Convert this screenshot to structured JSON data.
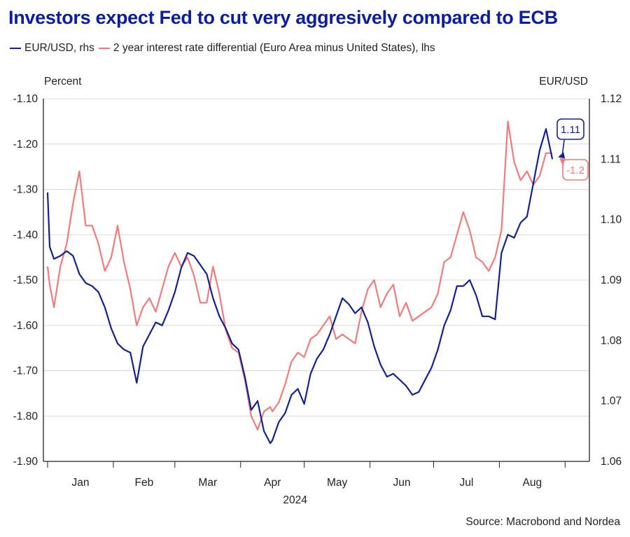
{
  "title": "Investors expect Fed to cut very aggresively compared to ECB",
  "source": "Source: Macrobond and Nordea",
  "colors": {
    "title": "#0b1f9c",
    "eurusd": "#13228f",
    "spread": "#ee7c7c",
    "grid": "#d9d9d9"
  },
  "chart_data": {
    "type": "line",
    "title": "Investors expect Fed to cut very aggresively compared to ECB",
    "y_left_label": "Percent",
    "y_right_label": "EUR/USD",
    "x_period_label": "2024",
    "x_ticks": [
      "Jan",
      "Feb",
      "Mar",
      "Apr",
      "May",
      "Jun",
      "Jul",
      "Aug"
    ],
    "y_left": {
      "min": -1.9,
      "max": -1.1,
      "ticks": [
        "-1.10",
        "-1.20",
        "-1.30",
        "-1.40",
        "-1.50",
        "-1.60",
        "-1.70",
        "-1.80",
        "-1.90"
      ]
    },
    "y_right": {
      "min": 1.06,
      "max": 1.12,
      "ticks": [
        "1.12",
        "1.11",
        "1.10",
        "1.09",
        "1.08",
        "1.07",
        "1.06"
      ]
    },
    "grid": true,
    "legend_position": "top-left",
    "series": [
      {
        "name": "EUR/USD, rhs",
        "axis": "right",
        "x": [
          "2024-01-01",
          "2024-01-02",
          "2024-01-04",
          "2024-01-07",
          "2024-01-10",
          "2024-01-13",
          "2024-01-16",
          "2024-01-19",
          "2024-01-22",
          "2024-01-25",
          "2024-01-28",
          "2024-01-31",
          "2024-02-03",
          "2024-02-06",
          "2024-02-09",
          "2024-02-12",
          "2024-02-15",
          "2024-02-18",
          "2024-02-21",
          "2024-02-24",
          "2024-02-27",
          "2024-03-01",
          "2024-03-04",
          "2024-03-07",
          "2024-03-10",
          "2024-03-13",
          "2024-03-16",
          "2024-03-19",
          "2024-03-22",
          "2024-03-25",
          "2024-03-28",
          "2024-03-31",
          "2024-04-03",
          "2024-04-06",
          "2024-04-09",
          "2024-04-12",
          "2024-04-15",
          "2024-04-16",
          "2024-04-19",
          "2024-04-22",
          "2024-04-25",
          "2024-04-28",
          "2024-05-01",
          "2024-05-04",
          "2024-05-07",
          "2024-05-10",
          "2024-05-13",
          "2024-05-16",
          "2024-05-19",
          "2024-05-22",
          "2024-05-25",
          "2024-05-28",
          "2024-05-31",
          "2024-06-03",
          "2024-06-06",
          "2024-06-09",
          "2024-06-12",
          "2024-06-15",
          "2024-06-18",
          "2024-06-21",
          "2024-06-24",
          "2024-06-27",
          "2024-06-30",
          "2024-07-03",
          "2024-07-06",
          "2024-07-09",
          "2024-07-12",
          "2024-07-15",
          "2024-07-18",
          "2024-07-21",
          "2024-07-24",
          "2024-07-27",
          "2024-07-30",
          "2024-08-02",
          "2024-08-05",
          "2024-08-08",
          "2024-08-11",
          "2024-08-14",
          "2024-08-17",
          "2024-08-20",
          "2024-08-23",
          "2024-08-26"
        ],
        "values": [
          1.1045,
          1.0955,
          1.0935,
          1.094,
          1.0948,
          1.094,
          1.091,
          1.0895,
          1.089,
          1.088,
          1.0855,
          1.082,
          1.0795,
          1.0785,
          1.078,
          1.073,
          1.079,
          1.081,
          1.083,
          1.0825,
          1.085,
          1.088,
          1.092,
          1.0945,
          1.094,
          1.0925,
          1.091,
          1.087,
          1.084,
          1.082,
          1.0795,
          1.0785,
          1.074,
          1.0685,
          1.07,
          1.065,
          1.063,
          1.0635,
          1.0665,
          1.068,
          1.071,
          1.072,
          1.0695,
          1.0745,
          1.077,
          1.0785,
          1.081,
          1.084,
          1.087,
          1.086,
          1.0845,
          1.0855,
          1.083,
          1.079,
          1.076,
          1.074,
          1.0745,
          1.0735,
          1.0725,
          1.071,
          1.0715,
          1.0735,
          1.0755,
          1.0785,
          1.0825,
          1.085,
          1.089,
          1.089,
          1.09,
          1.0875,
          1.084,
          1.084,
          1.0835,
          1.0945,
          1.0975,
          1.097,
          1.0995,
          1.1005,
          1.106,
          1.1115,
          1.115,
          1.11
        ]
      },
      {
        "name": "2 year interest rate differential (Euro Area minus United States), lhs",
        "axis": "left",
        "x": [
          "2024-01-01",
          "2024-01-02",
          "2024-01-04",
          "2024-01-07",
          "2024-01-10",
          "2024-01-13",
          "2024-01-16",
          "2024-01-19",
          "2024-01-22",
          "2024-01-25",
          "2024-01-28",
          "2024-01-31",
          "2024-02-03",
          "2024-02-06",
          "2024-02-09",
          "2024-02-12",
          "2024-02-15",
          "2024-02-18",
          "2024-02-21",
          "2024-02-24",
          "2024-02-27",
          "2024-03-01",
          "2024-03-04",
          "2024-03-07",
          "2024-03-10",
          "2024-03-13",
          "2024-03-16",
          "2024-03-19",
          "2024-03-22",
          "2024-03-25",
          "2024-03-28",
          "2024-03-31",
          "2024-04-03",
          "2024-04-06",
          "2024-04-09",
          "2024-04-12",
          "2024-04-15",
          "2024-04-16",
          "2024-04-19",
          "2024-04-22",
          "2024-04-25",
          "2024-04-28",
          "2024-05-01",
          "2024-05-04",
          "2024-05-07",
          "2024-05-10",
          "2024-05-13",
          "2024-05-16",
          "2024-05-19",
          "2024-05-22",
          "2024-05-25",
          "2024-05-28",
          "2024-05-31",
          "2024-06-03",
          "2024-06-06",
          "2024-06-09",
          "2024-06-12",
          "2024-06-15",
          "2024-06-18",
          "2024-06-21",
          "2024-06-24",
          "2024-06-27",
          "2024-06-30",
          "2024-07-03",
          "2024-07-06",
          "2024-07-09",
          "2024-07-12",
          "2024-07-15",
          "2024-07-18",
          "2024-07-21",
          "2024-07-24",
          "2024-07-27",
          "2024-07-30",
          "2024-08-02",
          "2024-08-05",
          "2024-08-08",
          "2024-08-11",
          "2024-08-14",
          "2024-08-17",
          "2024-08-20",
          "2024-08-23",
          "2024-08-26"
        ],
        "values": [
          -1.47,
          -1.51,
          -1.56,
          -1.47,
          -1.42,
          -1.33,
          -1.26,
          -1.38,
          -1.38,
          -1.42,
          -1.48,
          -1.45,
          -1.38,
          -1.46,
          -1.52,
          -1.6,
          -1.56,
          -1.54,
          -1.57,
          -1.52,
          -1.47,
          -1.44,
          -1.47,
          -1.45,
          -1.49,
          -1.55,
          -1.55,
          -1.47,
          -1.53,
          -1.61,
          -1.65,
          -1.66,
          -1.72,
          -1.8,
          -1.83,
          -1.79,
          -1.78,
          -1.79,
          -1.77,
          -1.73,
          -1.68,
          -1.66,
          -1.67,
          -1.63,
          -1.62,
          -1.6,
          -1.58,
          -1.63,
          -1.62,
          -1.63,
          -1.64,
          -1.57,
          -1.52,
          -1.5,
          -1.56,
          -1.53,
          -1.51,
          -1.58,
          -1.55,
          -1.59,
          -1.58,
          -1.57,
          -1.56,
          -1.53,
          -1.46,
          -1.45,
          -1.4,
          -1.35,
          -1.39,
          -1.45,
          -1.46,
          -1.48,
          -1.45,
          -1.39,
          -1.15,
          -1.24,
          -1.28,
          -1.26,
          -1.29,
          -1.27,
          -1.22,
          -1.22
        ]
      }
    ],
    "annotations": [
      {
        "series": "EUR/USD, rhs",
        "label": "1.11"
      },
      {
        "series": "2 year interest rate differential (Euro Area minus United States), lhs",
        "label": "-1.2"
      }
    ]
  }
}
